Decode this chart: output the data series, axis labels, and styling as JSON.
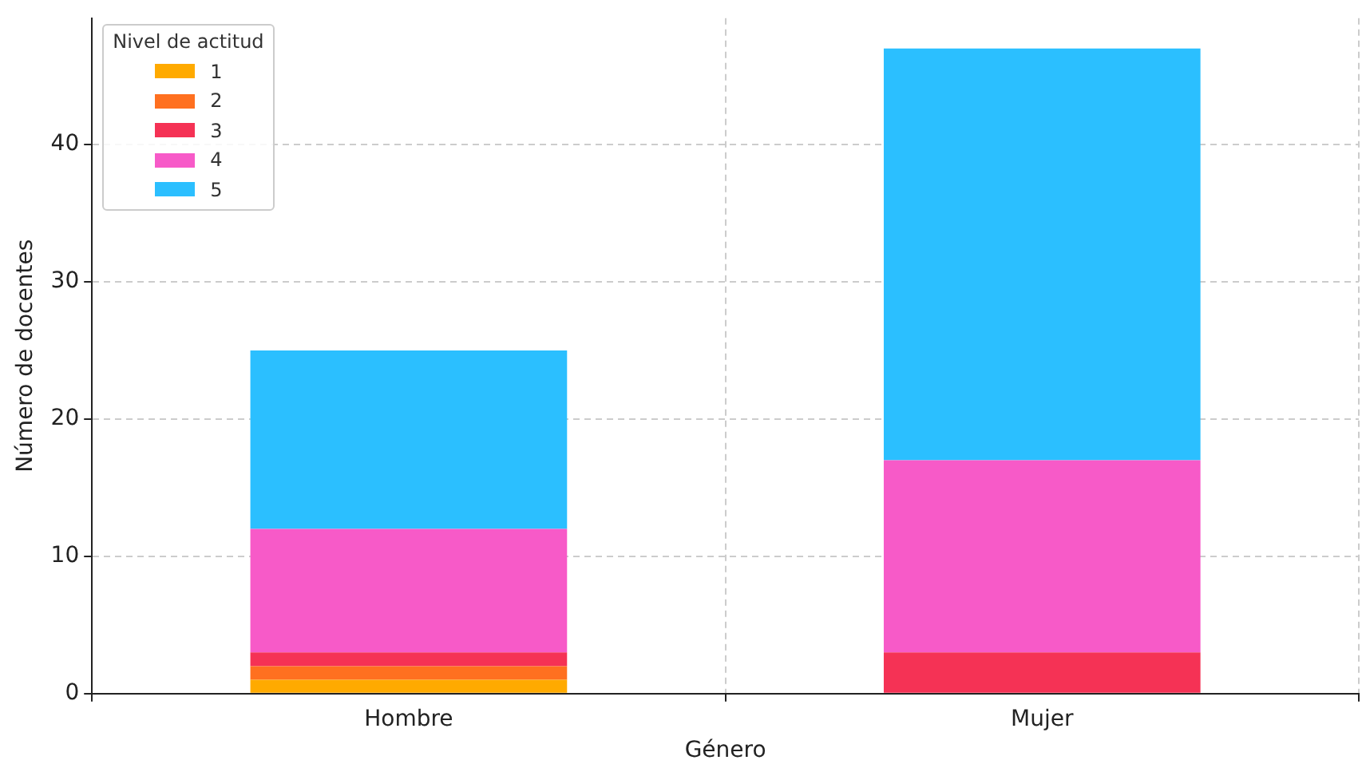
{
  "chart_data": {
    "type": "bar",
    "stacked": true,
    "xlabel": "Género",
    "ylabel": "Número de docentes",
    "legend_title": "Nivel de actitud",
    "legend": "top left",
    "grid": true,
    "categories": [
      "Hombre",
      "Mujer"
    ],
    "ylim": [
      0,
      49.2
    ],
    "yticks": [
      0,
      10,
      20,
      30,
      40
    ],
    "series": [
      {
        "name": "1",
        "color": "#ffaa00",
        "values": [
          1,
          0
        ]
      },
      {
        "name": "2",
        "color": "#ff7020",
        "values": [
          1,
          0
        ]
      },
      {
        "name": "3",
        "color": "#f53255",
        "values": [
          1,
          3
        ]
      },
      {
        "name": "4",
        "color": "#f75ac8",
        "values": [
          9,
          14
        ]
      },
      {
        "name": "5",
        "color": "#2bbfff",
        "values": [
          13,
          30
        ]
      }
    ]
  }
}
